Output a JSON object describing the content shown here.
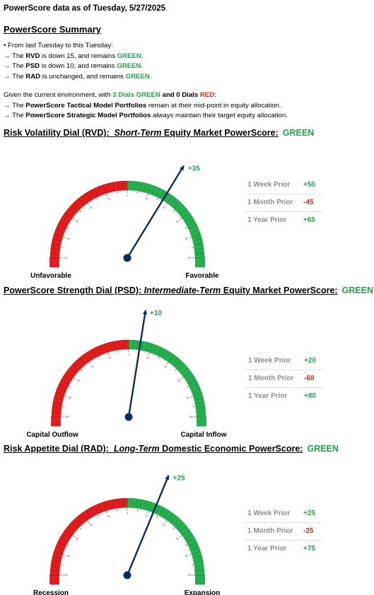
{
  "header": {
    "date_line": "PowerScore data as of Tuesday, 5/27/2025"
  },
  "summary": {
    "title": "PowerScore Summary",
    "intro": "• From last Tuesday to this Tuesday:",
    "lines": [
      {
        "pre": "→ The ",
        "bold": "RVD",
        "mid": " is down 15, and remains ",
        "status": "GREEN",
        "post": "."
      },
      {
        "pre": "→ The ",
        "bold": "PSD",
        "mid": " is down 10, and remains ",
        "status": "GREEN",
        "post": "."
      },
      {
        "pre": "→ The ",
        "bold": "RAD",
        "mid": " is unchanged, and remains ",
        "status": "GREEN",
        "post": "."
      }
    ],
    "env_pre": "Given the current environment, with ",
    "env_green": "3 Dials GREEN",
    "env_and": " and ",
    "env_red_count": "0 Dials ",
    "env_red": "RED",
    "env_colon": ":",
    "tactical_pre": "→ The ",
    "tactical_bold": "PowerScore Tactical Model Portfolios",
    "tactical_post": " remain at their mid-point in equity allocation.",
    "strategic_pre": "→ The ",
    "strategic_bold": "PowerScore Strategic Model Portfolios",
    "strategic_post": " always maintain their target equity allocation."
  },
  "colors": {
    "green": "#1fa34a",
    "red": "#e02020",
    "needle": "#0d2a66",
    "gauge_green": "#22b14c",
    "gauge_red": "#e41c1c"
  },
  "chart_data": [
    {
      "type": "gauge",
      "title_main": "Risk Volatility Dial (RVD):",
      "title_term": "Short-Term",
      "title_rest": " Equity Market PowerScore:",
      "status": "GREEN",
      "range": [
        -100,
        100
      ],
      "value": 35,
      "value_label": "+35",
      "left_label": "Unfavorable",
      "right_label": "Favorable",
      "priors": [
        {
          "label": "1 Week Prior",
          "value": 50,
          "text": "+50"
        },
        {
          "label": "1 Month Prior",
          "value": -45,
          "text": "-45"
        },
        {
          "label": "1 Year Prior",
          "value": 65,
          "text": "+65"
        }
      ]
    },
    {
      "type": "gauge",
      "title_main": "PowerScore Strength Dial (PSD):",
      "title_term": "Intermediate-Term",
      "title_rest": " Equity Market PowerScore:",
      "status": "GREEN",
      "range": [
        -100,
        100
      ],
      "value": 10,
      "value_label": "+10",
      "left_label": "Capital Outflow",
      "right_label": "Capital Inflow",
      "priors": [
        {
          "label": "1 Week Prior",
          "value": 20,
          "text": "+20"
        },
        {
          "label": "1 Month Prior",
          "value": -60,
          "text": "-60"
        },
        {
          "label": "1 Year Prior",
          "value": 80,
          "text": "+80"
        }
      ]
    },
    {
      "type": "gauge",
      "title_main": "Risk Appetite Dial (RAD):",
      "title_term": "Long-Term",
      "title_rest": " Domestic Economic PowerScore:",
      "status": "GREEN",
      "range": [
        -100,
        100
      ],
      "value": 25,
      "value_label": "+25",
      "left_label": "Recession",
      "right_label": "Expansion",
      "priors": [
        {
          "label": "1 Week Prior",
          "value": 25,
          "text": "+25"
        },
        {
          "label": "1 Month Prior",
          "value": -25,
          "text": "-25"
        },
        {
          "label": "1 Year Prior",
          "value": 75,
          "text": "+75"
        }
      ]
    }
  ]
}
